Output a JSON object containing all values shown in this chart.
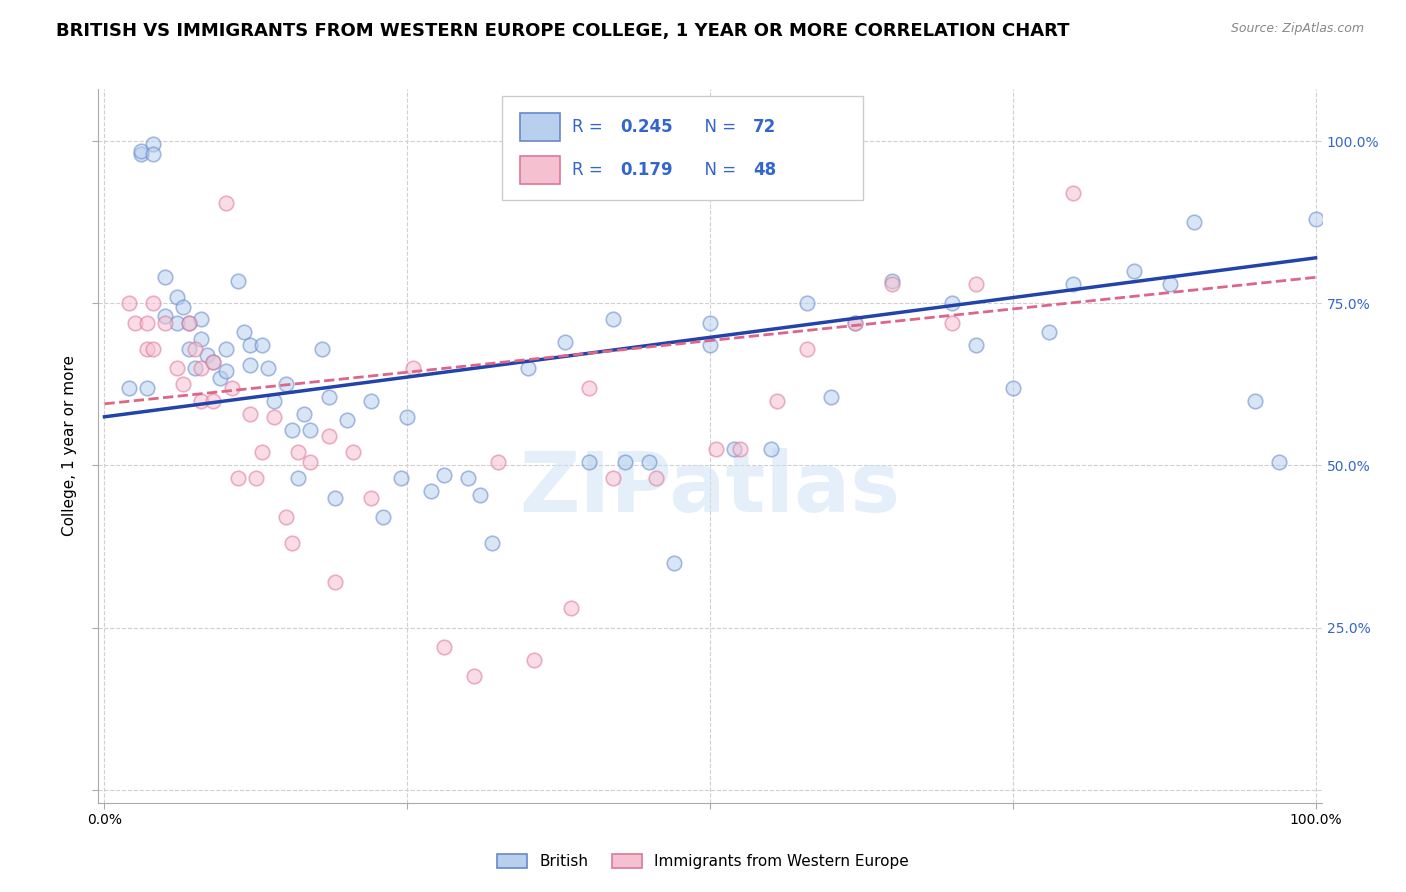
{
  "title": "BRITISH VS IMMIGRANTS FROM WESTERN EUROPE COLLEGE, 1 YEAR OR MORE CORRELATION CHART",
  "source": "Source: ZipAtlas.com",
  "ylabel": "College, 1 year or more",
  "legend_british_R": "0.245",
  "legend_british_N": "72",
  "legend_immigrant_R": "0.179",
  "legend_immigrant_N": "48",
  "british_fill": "#b8d0ee",
  "british_edge": "#6688cc",
  "immigrant_fill": "#f5c0d0",
  "immigrant_edge": "#dd7799",
  "blue_line_color": "#2244aa",
  "pink_line_color": "#dd6688",
  "legend_text_color": "#3366cc",
  "right_axis_color": "#3366cc",
  "blue_scatter_x": [
    0.02,
    0.03,
    0.03,
    0.035,
    0.04,
    0.04,
    0.05,
    0.05,
    0.06,
    0.06,
    0.065,
    0.07,
    0.07,
    0.075,
    0.08,
    0.08,
    0.085,
    0.09,
    0.095,
    0.1,
    0.1,
    0.11,
    0.115,
    0.12,
    0.12,
    0.13,
    0.135,
    0.14,
    0.15,
    0.155,
    0.16,
    0.165,
    0.17,
    0.18,
    0.185,
    0.19,
    0.2,
    0.22,
    0.23,
    0.245,
    0.25,
    0.27,
    0.28,
    0.3,
    0.31,
    0.32,
    0.35,
    0.38,
    0.4,
    0.42,
    0.43,
    0.45,
    0.47,
    0.5,
    0.5,
    0.52,
    0.55,
    0.58,
    0.6,
    0.62,
    0.65,
    0.7,
    0.72,
    0.75,
    0.78,
    0.8,
    0.85,
    0.88,
    0.9,
    0.95,
    0.97,
    1.0
  ],
  "blue_scatter_y": [
    0.62,
    0.98,
    0.985,
    0.62,
    0.995,
    0.98,
    0.79,
    0.73,
    0.76,
    0.72,
    0.745,
    0.72,
    0.68,
    0.65,
    0.725,
    0.695,
    0.67,
    0.66,
    0.635,
    0.68,
    0.645,
    0.785,
    0.705,
    0.685,
    0.655,
    0.685,
    0.65,
    0.6,
    0.625,
    0.555,
    0.48,
    0.58,
    0.555,
    0.68,
    0.605,
    0.45,
    0.57,
    0.6,
    0.42,
    0.48,
    0.575,
    0.46,
    0.485,
    0.48,
    0.455,
    0.38,
    0.65,
    0.69,
    0.505,
    0.725,
    0.505,
    0.505,
    0.35,
    0.72,
    0.685,
    0.525,
    0.525,
    0.75,
    0.605,
    0.72,
    0.785,
    0.75,
    0.685,
    0.62,
    0.705,
    0.78,
    0.8,
    0.78,
    0.875,
    0.6,
    0.505,
    0.88
  ],
  "pink_scatter_x": [
    0.02,
    0.025,
    0.035,
    0.035,
    0.04,
    0.04,
    0.05,
    0.06,
    0.065,
    0.07,
    0.075,
    0.08,
    0.08,
    0.09,
    0.09,
    0.1,
    0.105,
    0.11,
    0.12,
    0.125,
    0.13,
    0.14,
    0.15,
    0.155,
    0.16,
    0.17,
    0.185,
    0.19,
    0.205,
    0.22,
    0.255,
    0.28,
    0.305,
    0.325,
    0.355,
    0.385,
    0.4,
    0.42,
    0.455,
    0.505,
    0.525,
    0.555,
    0.58,
    0.62,
    0.65,
    0.7,
    0.72,
    0.8
  ],
  "pink_scatter_y": [
    0.75,
    0.72,
    0.68,
    0.72,
    0.68,
    0.75,
    0.72,
    0.65,
    0.625,
    0.72,
    0.68,
    0.65,
    0.6,
    0.66,
    0.6,
    0.905,
    0.62,
    0.48,
    0.58,
    0.48,
    0.52,
    0.575,
    0.42,
    0.38,
    0.52,
    0.505,
    0.545,
    0.32,
    0.52,
    0.45,
    0.65,
    0.22,
    0.175,
    0.505,
    0.2,
    0.28,
    0.62,
    0.48,
    0.48,
    0.525,
    0.525,
    0.6,
    0.68,
    0.72,
    0.78,
    0.72,
    0.78,
    0.92
  ],
  "blue_line": [
    0.0,
    1.0,
    0.575,
    0.82
  ],
  "pink_line": [
    0.0,
    1.0,
    0.595,
    0.79
  ],
  "xlim": [
    -0.005,
    1.005
  ],
  "ylim": [
    -0.02,
    1.08
  ],
  "title_fontsize": 13,
  "ylabel_fontsize": 11,
  "tick_fontsize": 10,
  "scatter_size": 110,
  "scatter_alpha": 0.55,
  "scatter_lw": 1.2,
  "grid_color": "#d0d0d0",
  "watermark_text": "ZIPatlas",
  "watermark_color": "#cce0f5",
  "watermark_alpha": 0.5,
  "watermark_fontsize": 60
}
